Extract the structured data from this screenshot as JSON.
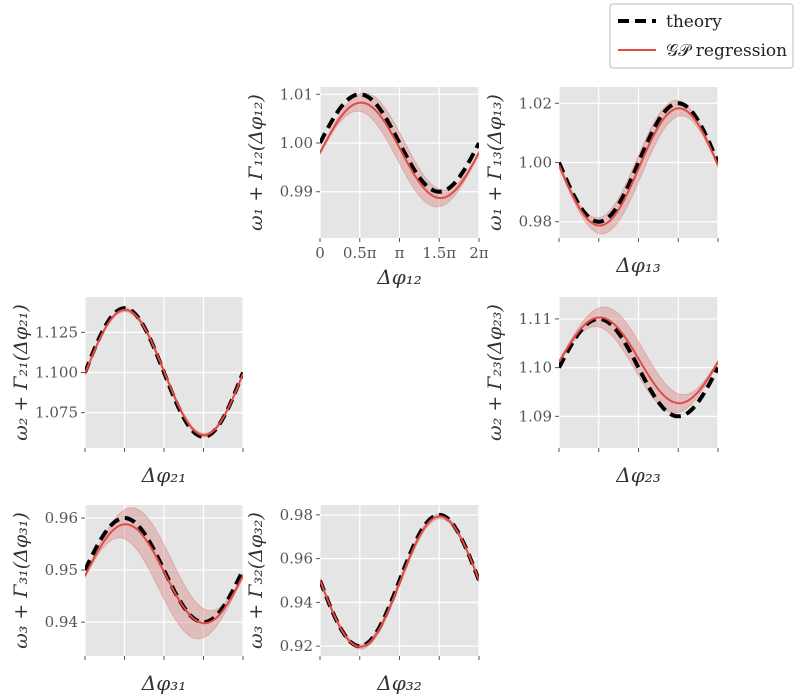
{
  "legend": {
    "theory_label": "theory",
    "gp_label": "𝒢𝒫 regression"
  },
  "colors": {
    "theory": "#000000",
    "gp": "#e24a45",
    "band": "#d98b8b",
    "panel_bg": "#e5e5e5",
    "grid": "#ffffff"
  },
  "chart_data": [
    {
      "type": "line",
      "id": "12",
      "xlabel": "Δφ₁₂",
      "ylabel": "ω₁ + Γ₁₂(Δφ₁₂)",
      "xlim": [
        0,
        6.283
      ],
      "ylim": [
        0.9805,
        1.0115
      ],
      "xticks": [
        0,
        1.5708,
        3.1416,
        4.7124,
        6.2832
      ],
      "xtick_labels": [
        "0",
        "0.5π",
        "π",
        "1.5π",
        "2π"
      ],
      "yticks": [
        0.99,
        1.0,
        1.01
      ],
      "ytick_labels": [
        "0.99",
        "1.00",
        "1.01"
      ],
      "theory": {
        "base": 1.0,
        "amp": 0.01
      },
      "gp": {
        "base": 0.9985,
        "amp": 0.0098,
        "shift": 0.05
      },
      "band": [
        0.0004,
        0.0032
      ]
    },
    {
      "type": "line",
      "id": "13",
      "xlabel": "Δφ₁₃",
      "ylabel": "ω₁ + Γ₁₃(Δφ₁₃)",
      "xlim": [
        0,
        6.283
      ],
      "ylim": [
        0.9745,
        1.0255
      ],
      "xticks": [
        0,
        1.5708,
        3.1416,
        4.7124,
        6.2832
      ],
      "xtick_labels": [
        "",
        "",
        "",
        "",
        ""
      ],
      "yticks": [
        0.98,
        1.0,
        1.02
      ],
      "ytick_labels": [
        "0.98",
        "1.00",
        "1.02"
      ],
      "theory": {
        "base": 1.0,
        "amp": -0.02
      },
      "gp": {
        "base": 0.9985,
        "amp": -0.0198,
        "shift": 0.03
      },
      "band": [
        0.0008,
        0.0045
      ]
    },
    {
      "type": "line",
      "id": "21",
      "xlabel": "Δφ₂₁",
      "ylabel": "ω₂ + Γ₂₁(Δφ₂₁)",
      "xlim": [
        0,
        6.283
      ],
      "ylim": [
        1.053,
        1.147
      ],
      "xticks": [
        0,
        1.5708,
        3.1416,
        4.7124,
        6.2832
      ],
      "xtick_labels": [
        "",
        "",
        "",
        "",
        ""
      ],
      "yticks": [
        1.075,
        1.1,
        1.125
      ],
      "ytick_labels": [
        "1.075",
        "1.100",
        "1.125"
      ],
      "theory": {
        "base": 1.1,
        "amp": 0.04
      },
      "gp": {
        "base": 1.1,
        "amp": 0.039,
        "shift": 0.02
      },
      "band": [
        0.0008,
        0.0014
      ]
    },
    {
      "type": "line",
      "id": "23",
      "xlabel": "Δφ₂₃",
      "ylabel": "ω₂ + Γ₂₃(Δφ₂₃)",
      "xlim": [
        0,
        6.283
      ],
      "ylim": [
        1.0835,
        1.1145
      ],
      "xticks": [
        0,
        1.5708,
        3.1416,
        4.7124,
        6.2832
      ],
      "xtick_labels": [
        "",
        "",
        "",
        "",
        ""
      ],
      "yticks": [
        1.09,
        1.1,
        1.11
      ],
      "ytick_labels": [
        "1.09",
        "1.10",
        "1.11"
      ],
      "theory": {
        "base": 1.1,
        "amp": 0.01
      },
      "gp": {
        "base": 1.1015,
        "amp": 0.0088,
        "shift": 0.04
      },
      "band": [
        0.0004,
        0.0035
      ]
    },
    {
      "type": "line",
      "id": "31",
      "xlabel": "Δφ₃₁",
      "ylabel": "ω₃ + Γ₃₁(Δφ₃₁)",
      "xlim": [
        0,
        6.283
      ],
      "ylim": [
        0.9335,
        0.9625
      ],
      "xticks": [
        0,
        1.5708,
        3.1416,
        4.7124,
        6.2832
      ],
      "xtick_labels": [
        "",
        "",
        "",
        "",
        ""
      ],
      "yticks": [
        0.94,
        0.95,
        0.96
      ],
      "ytick_labels": [
        "0.94",
        "0.95",
        "0.96"
      ],
      "theory": {
        "base": 0.95,
        "amp": 0.01
      },
      "gp": {
        "base": 0.9493,
        "amp": 0.0095,
        "shift": 0.04
      },
      "band": [
        0.0004,
        0.0052
      ]
    },
    {
      "type": "line",
      "id": "32",
      "xlabel": "Δφ₃₂",
      "ylabel": "ω₃ + Γ₃₂(Δφ₃₂)",
      "xlim": [
        0,
        6.283
      ],
      "ylim": [
        0.9155,
        0.9845
      ],
      "xticks": [
        0,
        1.5708,
        3.1416,
        4.7124,
        6.2832
      ],
      "xtick_labels": [
        "",
        "",
        "",
        "",
        ""
      ],
      "yticks": [
        0.92,
        0.94,
        0.96,
        0.98
      ],
      "ytick_labels": [
        "0.92",
        "0.94",
        "0.96",
        "0.98"
      ],
      "theory": {
        "base": 0.95,
        "amp": -0.03
      },
      "gp": {
        "base": 0.9495,
        "amp": -0.0298,
        "shift": 0.02
      },
      "band": [
        0.0008,
        0.0014
      ]
    }
  ]
}
